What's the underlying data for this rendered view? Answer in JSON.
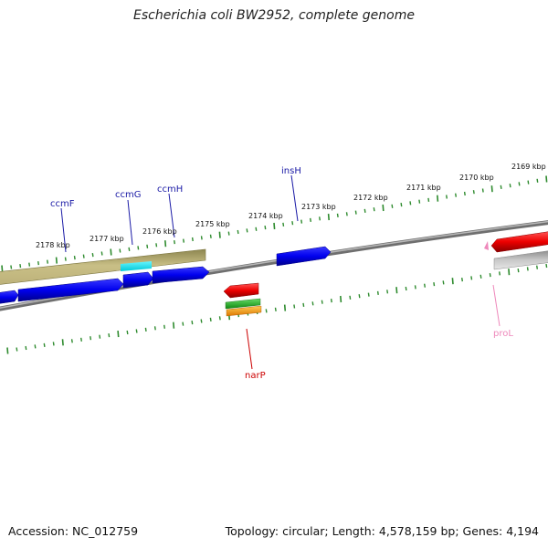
{
  "title": "Escherichia coli BW2952, complete genome",
  "footer": {
    "accession": "Accession: NC_012759",
    "summary": "Topology: circular; Length: 4,578,159 bp; Genes: 4,194"
  },
  "ruler_labels": [
    "2178 kbp",
    "2177 kbp",
    "2176 kbp",
    "2175 kbp",
    "2174 kbp",
    "2173 kbp",
    "2172 kbp",
    "2171 kbp",
    "2170 kbp",
    "2169 kbp"
  ],
  "gene_labels": {
    "ccmF": "ccmF",
    "ccmG": "ccmG",
    "ccmH": "ccmH",
    "insH": "insH",
    "narP": "narP",
    "proL": "proL"
  },
  "colors": {
    "backbone": "#8a8a8a",
    "tick": "#2e8b2e",
    "gene_blue": "#0000ee",
    "gene_red": "#ee0000",
    "gene_olive": "#bdb27a",
    "gene_cyan": "#00e5ee",
    "gene_green": "#22bb22",
    "gene_orange": "#ff9900",
    "gene_grey": "#aaaaaa",
    "label_blue": "#1a1aa6",
    "label_red": "#cc0000",
    "label_pink": "#ee88bb"
  }
}
